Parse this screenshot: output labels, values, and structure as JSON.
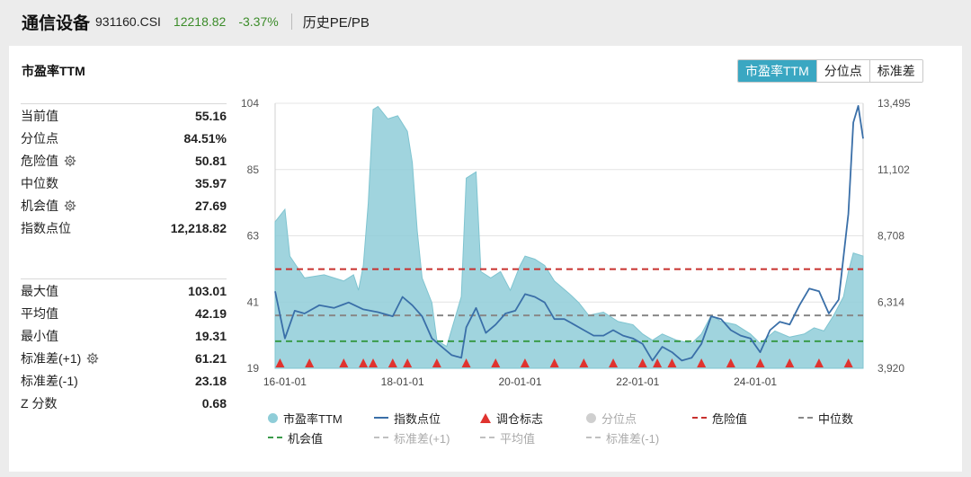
{
  "header": {
    "name": "通信设备",
    "code": "931160.CSI",
    "price": "12218.82",
    "change": "-3.37%",
    "history_link": "历史PE/PB"
  },
  "panel": {
    "title": "市盈率TTM",
    "tabs": [
      {
        "label": "市盈率TTM",
        "active": true
      },
      {
        "label": "分位点",
        "active": false
      },
      {
        "label": "标准差",
        "active": false
      }
    ]
  },
  "stats_top": [
    {
      "label": "当前值",
      "value": "55.16",
      "gear": false
    },
    {
      "label": "分位点",
      "value": "84.51%",
      "gear": false
    },
    {
      "label": "危险值",
      "value": "50.81",
      "gear": true
    },
    {
      "label": "中位数",
      "value": "35.97",
      "gear": false
    },
    {
      "label": "机会值",
      "value": "27.69",
      "gear": true
    },
    {
      "label": "指数点位",
      "value": "12,218.82",
      "gear": false
    }
  ],
  "stats_bottom": [
    {
      "label": "最大值",
      "value": "103.01",
      "gear": false
    },
    {
      "label": "平均值",
      "value": "42.19",
      "gear": false
    },
    {
      "label": "最小值",
      "value": "19.31",
      "gear": false
    },
    {
      "label": "标准差(+1)",
      "value": "61.21",
      "gear": true
    },
    {
      "label": "标准差(-1)",
      "value": "23.18",
      "gear": false
    },
    {
      "label": "Z 分数",
      "value": "0.68",
      "gear": false
    }
  ],
  "chart_data": {
    "type": "area",
    "x_start": "2015-11",
    "x_end": "2025-11",
    "xticks": [
      "16-01-01",
      "18-01-01",
      "20-01-01",
      "22-01-01",
      "24-01-01"
    ],
    "y_left": {
      "min": 19,
      "max": 104,
      "ticks": [
        "104",
        "85",
        "63",
        "41",
        "19"
      ]
    },
    "y_right": {
      "min": 3920,
      "max": 13495,
      "ticks": [
        "13,495",
        "11,102",
        "8,708",
        "6,314",
        "3,920"
      ]
    },
    "reference_lines": {
      "danger": 50.81,
      "median": 35.97,
      "opportunity": 27.69
    },
    "pe_points": [
      [
        "2015-11",
        66
      ],
      [
        "2016-01",
        70
      ],
      [
        "2016-02",
        55
      ],
      [
        "2016-05",
        48
      ],
      [
        "2016-09",
        49
      ],
      [
        "2017-01",
        47
      ],
      [
        "2017-03",
        49
      ],
      [
        "2017-04",
        44
      ],
      [
        "2017-05",
        52
      ],
      [
        "2017-06",
        72
      ],
      [
        "2017-07",
        102
      ],
      [
        "2017-08",
        103
      ],
      [
        "2017-10",
        99
      ],
      [
        "2017-12",
        100
      ],
      [
        "2018-02",
        95
      ],
      [
        "2018-03",
        85
      ],
      [
        "2018-04",
        63
      ],
      [
        "2018-05",
        48
      ],
      [
        "2018-07",
        40
      ],
      [
        "2018-08",
        28
      ],
      [
        "2018-10",
        26
      ],
      [
        "2019-01",
        42
      ],
      [
        "2019-02",
        80
      ],
      [
        "2019-04",
        82
      ],
      [
        "2019-05",
        50
      ],
      [
        "2019-07",
        48
      ],
      [
        "2019-09",
        50
      ],
      [
        "2019-11",
        44
      ],
      [
        "2020-01",
        52
      ],
      [
        "2020-02",
        55
      ],
      [
        "2020-04",
        54
      ],
      [
        "2020-06",
        52
      ],
      [
        "2020-08",
        47
      ],
      [
        "2020-11",
        43
      ],
      [
        "2021-01",
        40
      ],
      [
        "2021-03",
        36
      ],
      [
        "2021-06",
        37
      ],
      [
        "2021-09",
        34
      ],
      [
        "2021-12",
        33
      ],
      [
        "2022-02",
        30
      ],
      [
        "2022-04",
        28
      ],
      [
        "2022-06",
        30
      ],
      [
        "2022-09",
        28
      ],
      [
        "2022-12",
        27
      ],
      [
        "2023-02",
        30
      ],
      [
        "2023-04",
        36
      ],
      [
        "2023-06",
        34
      ],
      [
        "2023-09",
        33
      ],
      [
        "2023-12",
        30
      ],
      [
        "2024-02",
        27
      ],
      [
        "2024-05",
        31
      ],
      [
        "2024-08",
        29
      ],
      [
        "2024-11",
        30
      ],
      [
        "2025-01",
        32
      ],
      [
        "2025-03",
        31
      ],
      [
        "2025-05",
        36
      ],
      [
        "2025-07",
        42
      ],
      [
        "2025-08",
        50
      ],
      [
        "2025-09",
        56
      ],
      [
        "2025-11",
        55
      ]
    ],
    "index_points": [
      [
        "2015-11",
        6700
      ],
      [
        "2016-01",
        5000
      ],
      [
        "2016-03",
        6000
      ],
      [
        "2016-05",
        5900
      ],
      [
        "2016-08",
        6200
      ],
      [
        "2016-11",
        6100
      ],
      [
        "2017-02",
        6300
      ],
      [
        "2017-05",
        6050
      ],
      [
        "2017-08",
        5950
      ],
      [
        "2017-11",
        5800
      ],
      [
        "2018-01",
        6500
      ],
      [
        "2018-03",
        6200
      ],
      [
        "2018-05",
        5800
      ],
      [
        "2018-07",
        5000
      ],
      [
        "2018-09",
        4700
      ],
      [
        "2018-11",
        4400
      ],
      [
        "2019-01",
        4300
      ],
      [
        "2019-02",
        5400
      ],
      [
        "2019-04",
        6100
      ],
      [
        "2019-06",
        5200
      ],
      [
        "2019-08",
        5500
      ],
      [
        "2019-10",
        5900
      ],
      [
        "2019-12",
        6000
      ],
      [
        "2020-02",
        6600
      ],
      [
        "2020-04",
        6500
      ],
      [
        "2020-06",
        6300
      ],
      [
        "2020-08",
        5700
      ],
      [
        "2020-10",
        5700
      ],
      [
        "2020-12",
        5500
      ],
      [
        "2021-02",
        5300
      ],
      [
        "2021-04",
        5100
      ],
      [
        "2021-06",
        5100
      ],
      [
        "2021-08",
        5300
      ],
      [
        "2021-10",
        5100
      ],
      [
        "2021-12",
        5000
      ],
      [
        "2022-02",
        4800
      ],
      [
        "2022-04",
        4200
      ],
      [
        "2022-06",
        4700
      ],
      [
        "2022-08",
        4500
      ],
      [
        "2022-10",
        4200
      ],
      [
        "2022-12",
        4300
      ],
      [
        "2023-02",
        4800
      ],
      [
        "2023-04",
        5800
      ],
      [
        "2023-06",
        5700
      ],
      [
        "2023-08",
        5300
      ],
      [
        "2023-10",
        5100
      ],
      [
        "2023-12",
        5000
      ],
      [
        "2024-02",
        4500
      ],
      [
        "2024-04",
        5300
      ],
      [
        "2024-06",
        5600
      ],
      [
        "2024-08",
        5500
      ],
      [
        "2024-10",
        6200
      ],
      [
        "2024-12",
        6800
      ],
      [
        "2025-02",
        6700
      ],
      [
        "2025-04",
        5900
      ],
      [
        "2025-06",
        6400
      ],
      [
        "2025-08",
        9500
      ],
      [
        "2025-09",
        12800
      ],
      [
        "2025-10",
        13400
      ],
      [
        "2025-11",
        12219
      ]
    ],
    "markers": [
      "2015-12",
      "2016-06",
      "2017-01",
      "2017-05",
      "2017-07",
      "2017-11",
      "2018-02",
      "2018-08",
      "2019-02",
      "2019-08",
      "2020-02",
      "2020-08",
      "2021-02",
      "2021-08",
      "2022-02",
      "2022-05",
      "2022-08",
      "2023-02",
      "2023-08",
      "2024-02",
      "2024-08",
      "2025-02",
      "2025-08"
    ],
    "legend": [
      {
        "label": "市盈率TTM",
        "kind": "dot",
        "color": "#8fcdd8",
        "muted": false
      },
      {
        "label": "指数点位",
        "kind": "line",
        "color": "#3a6fa8",
        "muted": false
      },
      {
        "label": "调仓标志",
        "kind": "tri",
        "color": "#e0332f",
        "muted": false
      },
      {
        "label": "分位点",
        "kind": "dot",
        "color": "#cfcfcf",
        "muted": true
      },
      {
        "label": "危险值",
        "kind": "dash",
        "color": "#c8302e",
        "muted": false
      },
      {
        "label": "中位数",
        "kind": "dash",
        "color": "#888888",
        "muted": false
      },
      {
        "label": "机会值",
        "kind": "dash",
        "color": "#3a9a4a",
        "muted": false
      },
      {
        "label": "标准差(+1)",
        "kind": "dash",
        "color": "#c0c0c0",
        "muted": true
      },
      {
        "label": "平均值",
        "kind": "dash",
        "color": "#c0c0c0",
        "muted": true
      },
      {
        "label": "标准差(-1)",
        "kind": "dash",
        "color": "#c0c0c0",
        "muted": true
      }
    ]
  }
}
